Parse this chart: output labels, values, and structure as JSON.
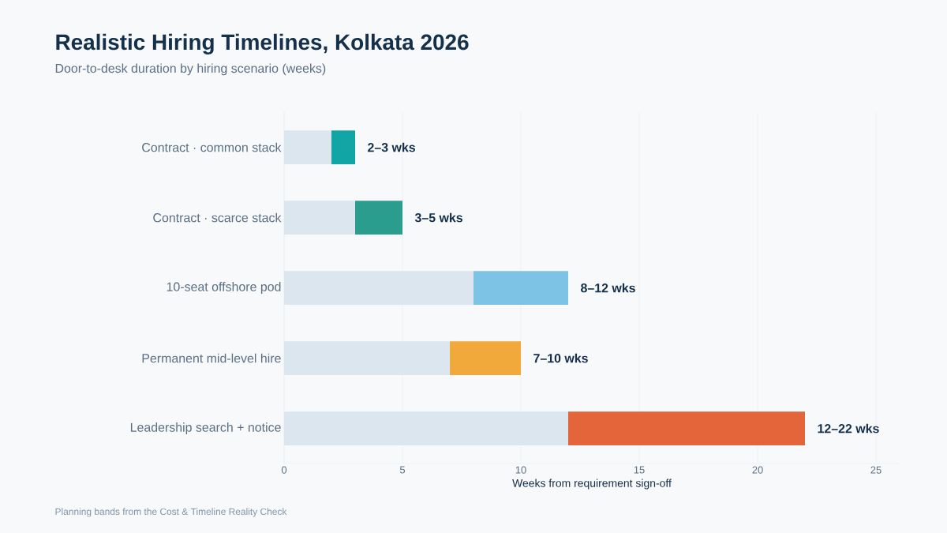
{
  "chart_data": {
    "type": "bar",
    "orientation": "horizontal",
    "stacked": true,
    "title": "Realistic Hiring Timelines, Kolkata 2026",
    "subtitle": "Door-to-desk duration by hiring scenario (weeks)",
    "xlabel": "Weeks from requirement sign-off",
    "annotations": [
      "Planning bands from the Cost & Timeline Reality Check"
    ],
    "categories": [
      "Contract · common stack",
      "Contract · scarce stack",
      "10-seat offshore pod",
      "Permanent mid-level hire",
      "Leadership search + notice"
    ],
    "series": [
      {
        "color": "#dce6ef",
        "values": [
          2,
          3,
          8,
          7,
          12
        ]
      },
      {
        "colors": [
          "#11a5a6",
          "#2a9d8f",
          "#7cc3e6",
          "#f2a93b",
          "#e5653a"
        ],
        "values": [
          1,
          2,
          4,
          3,
          10
        ],
        "value_labels": [
          "2–3 wks",
          "3–5 wks",
          "8–12 wks",
          "7–10 wks",
          "12–22 wks"
        ]
      }
    ],
    "xlim": [
      0,
      26
    ],
    "xticks": [
      0,
      5,
      10,
      15,
      20,
      25
    ],
    "grid": "x"
  }
}
